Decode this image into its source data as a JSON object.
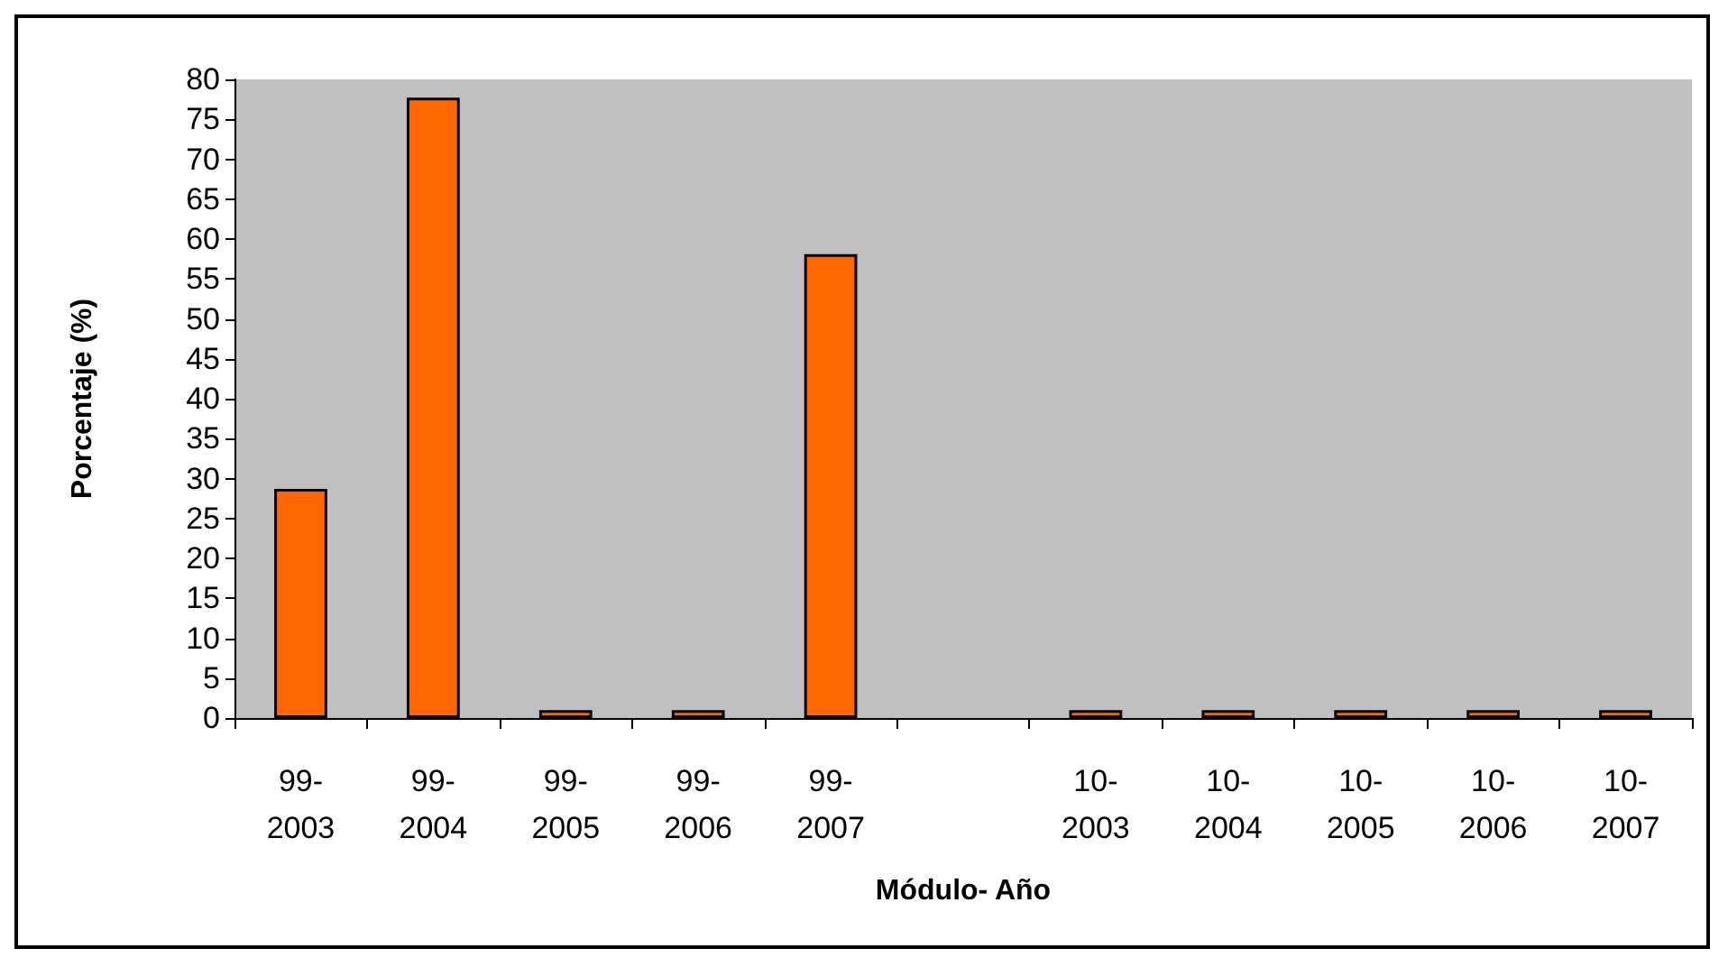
{
  "chart_data": {
    "type": "bar",
    "xlabel": "Módulo- Año",
    "ylabel": "Porcentaje (%)",
    "categories": [
      "99-2003",
      "99-2004",
      "99-2005",
      "99-2006",
      "99-2007",
      null,
      "10-2003",
      "10-2004",
      "10-2005",
      "10-2006",
      "10-2007"
    ],
    "values": [
      28.7,
      77.7,
      1,
      1,
      58.1,
      null,
      1,
      1,
      1,
      1,
      1
    ],
    "color": "#ff6600",
    "ylim": [
      0,
      80
    ],
    "yticks": [
      0,
      5,
      10,
      15,
      20,
      25,
      30,
      35,
      40,
      45,
      50,
      55,
      60,
      65,
      70,
      75,
      80
    ],
    "grid": false
  }
}
